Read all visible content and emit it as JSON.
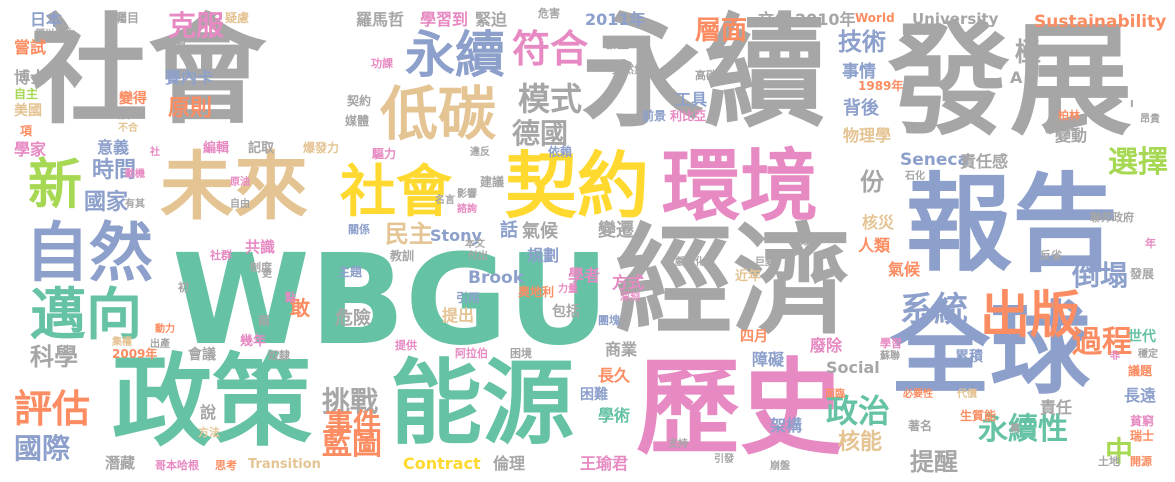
{
  "title": "",
  "palette": {
    "grey": "#a6a6a6",
    "green": "#66c2a5",
    "pink": "#e78ac3",
    "blue": "#8da0cb",
    "tan": "#e5c494",
    "yellow": "#ffd92f",
    "orange": "#fc8d62",
    "lime": "#a6d854"
  },
  "words": [
    {
      "text": "WBGU",
      "color": "green"
    },
    {
      "text": "社會",
      "color": "grey"
    },
    {
      "text": "永續",
      "color": "grey"
    },
    {
      "text": "發展",
      "color": "grey"
    },
    {
      "text": "經濟",
      "color": "grey"
    },
    {
      "text": "報告",
      "color": "blue"
    },
    {
      "text": "政策",
      "color": "green"
    },
    {
      "text": "能源",
      "color": "green"
    },
    {
      "text": "歷史",
      "color": "pink"
    },
    {
      "text": "全球",
      "color": "blue"
    },
    {
      "text": "未來",
      "color": "tan"
    },
    {
      "text": "環境",
      "color": "pink"
    },
    {
      "text": "社會",
      "color": "yellow"
    },
    {
      "text": "契約",
      "color": "yellow"
    },
    {
      "text": "自然",
      "color": "blue"
    },
    {
      "text": "邁向",
      "color": "green"
    },
    {
      "text": "永續",
      "color": "blue"
    },
    {
      "text": "低碳",
      "color": "tan"
    },
    {
      "text": "新",
      "color": "lime"
    },
    {
      "text": "出版",
      "color": "orange"
    },
    {
      "text": "符合",
      "color": "pink"
    },
    {
      "text": "評估",
      "color": "orange"
    },
    {
      "text": "國際",
      "color": "blue"
    },
    {
      "text": "藍圖",
      "color": "orange"
    },
    {
      "text": "政治",
      "color": "green"
    },
    {
      "text": "過程",
      "color": "orange"
    },
    {
      "text": "系統",
      "color": "blue"
    },
    {
      "text": "永續性",
      "color": "green"
    },
    {
      "text": "模式",
      "color": "grey"
    },
    {
      "text": "德國",
      "color": "grey"
    },
    {
      "text": "克服",
      "color": "pink"
    },
    {
      "text": "層面",
      "color": "orange"
    },
    {
      "text": "技術",
      "color": "blue"
    },
    {
      "text": "選擇",
      "color": "lime"
    },
    {
      "text": "倒塌",
      "color": "blue"
    },
    {
      "text": "挑戰",
      "color": "grey"
    },
    {
      "text": "事件",
      "color": "orange"
    },
    {
      "text": "時間",
      "color": "blue"
    },
    {
      "text": "國家",
      "color": "blue"
    },
    {
      "text": "原則",
      "color": "orange"
    },
    {
      "text": "民主",
      "color": "tan"
    },
    {
      "text": "科學",
      "color": "grey"
    },
    {
      "text": "提醒",
      "color": "grey"
    },
    {
      "text": "核能",
      "color": "tan"
    },
    {
      "text": "中",
      "color": "lime"
    },
    {
      "text": "份",
      "color": "grey"
    },
    {
      "text": "Stony",
      "color": "blue"
    },
    {
      "text": "Brook",
      "color": "blue"
    },
    {
      "text": "Seneca",
      "color": "blue"
    },
    {
      "text": "Contract",
      "color": "yellow"
    },
    {
      "text": "Social",
      "color": "grey"
    },
    {
      "text": "University",
      "color": "grey"
    },
    {
      "text": "Sustainability",
      "color": "orange"
    },
    {
      "text": "Transition",
      "color": "tan"
    },
    {
      "text": "World",
      "color": "orange"
    },
    {
      "text": "2011年",
      "color": "blue"
    },
    {
      "text": "文化",
      "color": "grey"
    },
    {
      "text": "2010年",
      "color": "grey"
    },
    {
      "text": "2009年",
      "color": "orange"
    },
    {
      "text": "1989年",
      "color": "orange"
    },
    {
      "text": "羅馬哲",
      "color": "grey"
    },
    {
      "text": "學習到",
      "color": "pink"
    },
    {
      "text": "緊迫",
      "color": "grey"
    },
    {
      "text": "日本",
      "color": "blue"
    },
    {
      "text": "矚目",
      "color": "grey"
    },
    {
      "text": "疑慮",
      "color": "tan"
    },
    {
      "text": "危害",
      "color": "grey"
    },
    {
      "text": "發生",
      "color": "grey"
    },
    {
      "text": "賽內卡",
      "color": "blue"
    },
    {
      "text": "福島",
      "color": "grey"
    },
    {
      "text": "嘗試",
      "color": "orange"
    },
    {
      "text": "頗以為生",
      "color": "grey"
    },
    {
      "text": "博士",
      "color": "grey"
    },
    {
      "text": "自主",
      "color": "lime"
    },
    {
      "text": "美國",
      "color": "tan"
    },
    {
      "text": "學家",
      "color": "pink"
    },
    {
      "text": "意義",
      "color": "blue"
    },
    {
      "text": "編輯",
      "color": "pink"
    },
    {
      "text": "記取",
      "color": "grey"
    },
    {
      "text": "爆發力",
      "color": "tan"
    },
    {
      "text": "驅力",
      "color": "pink"
    },
    {
      "text": "違反",
      "color": "grey"
    },
    {
      "text": "依賴",
      "color": "blue"
    },
    {
      "text": "前景",
      "color": "blue"
    },
    {
      "text": "利比亞",
      "color": "pink"
    },
    {
      "text": "事情",
      "color": "blue"
    },
    {
      "text": "工具",
      "color": "blue"
    },
    {
      "text": "背後",
      "color": "blue"
    },
    {
      "text": "物理學",
      "color": "tan"
    },
    {
      "text": "責任感",
      "color": "grey"
    },
    {
      "text": "變動",
      "color": "grey"
    },
    {
      "text": "柏林",
      "color": "orange"
    },
    {
      "text": "好像",
      "color": "grey"
    },
    {
      "text": "石化",
      "color": "grey"
    },
    {
      "text": "聯邦政府",
      "color": "grey"
    },
    {
      "text": "反省",
      "color": "grey"
    },
    {
      "text": "發展",
      "color": "grey"
    },
    {
      "text": "氣候",
      "color": "grey"
    },
    {
      "text": "變遷",
      "color": "grey"
    },
    {
      "text": "核災",
      "color": "tan"
    },
    {
      "text": "人類",
      "color": "orange"
    },
    {
      "text": "氣候",
      "color": "orange"
    },
    {
      "text": "規劃",
      "color": "blue"
    },
    {
      "text": "學者",
      "color": "pink"
    },
    {
      "text": "方式",
      "color": "pink"
    },
    {
      "text": "包括",
      "color": "grey"
    },
    {
      "text": "奧地利",
      "color": "orange"
    },
    {
      "text": "引用",
      "color": "blue"
    },
    {
      "text": "提出",
      "color": "tan"
    },
    {
      "text": "危險",
      "color": "grey"
    },
    {
      "text": "敢",
      "color": "orange"
    },
    {
      "text": "共識",
      "color": "pink"
    },
    {
      "text": "制度",
      "color": "grey"
    },
    {
      "text": "主題",
      "color": "blue"
    },
    {
      "text": "教訓",
      "color": "grey"
    },
    {
      "text": "關係",
      "color": "blue"
    },
    {
      "text": "社群",
      "color": "pink"
    },
    {
      "text": "初",
      "color": "grey"
    },
    {
      "text": "動力",
      "color": "orange"
    },
    {
      "text": "幾年",
      "color": "pink"
    },
    {
      "text": "集權",
      "color": "tan"
    },
    {
      "text": "出產",
      "color": "grey"
    },
    {
      "text": "會議",
      "color": "grey"
    },
    {
      "text": "奴隸",
      "color": "grey"
    },
    {
      "text": "提供",
      "color": "pink"
    },
    {
      "text": "阿拉伯",
      "color": "pink"
    },
    {
      "text": "困境",
      "color": "grey"
    },
    {
      "text": "商業",
      "color": "grey"
    },
    {
      "text": "四月",
      "color": "orange"
    },
    {
      "text": "廢除",
      "color": "pink"
    },
    {
      "text": "障礙",
      "color": "blue"
    },
    {
      "text": "累積",
      "color": "blue"
    },
    {
      "text": "世代",
      "color": "green"
    },
    {
      "text": "長遠",
      "color": "blue"
    },
    {
      "text": "議題",
      "color": "orange"
    },
    {
      "text": "貧窮",
      "color": "pink"
    },
    {
      "text": "瑞士",
      "color": "orange"
    },
    {
      "text": "開源",
      "color": "orange"
    },
    {
      "text": "土地",
      "color": "grey"
    },
    {
      "text": "責任",
      "color": "grey"
    },
    {
      "text": "生質能",
      "color": "orange"
    },
    {
      "text": "著名",
      "color": "grey"
    },
    {
      "text": "架構",
      "color": "blue"
    },
    {
      "text": "學術",
      "color": "green"
    },
    {
      "text": "困難",
      "color": "blue"
    },
    {
      "text": "長久",
      "color": "orange"
    },
    {
      "text": "倫理",
      "color": "grey"
    },
    {
      "text": "王瑜君",
      "color": "pink"
    },
    {
      "text": "潛藏",
      "color": "grey"
    },
    {
      "text": "哥本哈根",
      "color": "pink"
    },
    {
      "text": "思考",
      "color": "orange"
    },
    {
      "text": "說",
      "color": "grey"
    },
    {
      "text": "方法",
      "color": "tan"
    },
    {
      "text": "變得",
      "color": "orange"
    },
    {
      "text": "股",
      "color": "grey"
    },
    {
      "text": "項",
      "color": "orange"
    },
    {
      "text": "不合",
      "color": "tan"
    },
    {
      "text": "契約",
      "color": "grey"
    },
    {
      "text": "媒體",
      "color": "grey"
    },
    {
      "text": "功課",
      "color": "pink"
    },
    {
      "text": "天然氣",
      "color": "grey"
    },
    {
      "text": "高碳",
      "color": "grey"
    },
    {
      "text": "昂貴",
      "color": "grey"
    },
    {
      "text": "名言",
      "color": "grey"
    },
    {
      "text": "影響",
      "color": "grey"
    },
    {
      "text": "諮詢",
      "color": "pink"
    },
    {
      "text": "建議",
      "color": "grey"
    },
    {
      "text": "話",
      "color": "blue"
    },
    {
      "text": "本文",
      "color": "grey"
    },
    {
      "text": "付出",
      "color": "grey"
    },
    {
      "text": "戲劇化",
      "color": "grey"
    },
    {
      "text": "巨變",
      "color": "grey"
    },
    {
      "text": "政體",
      "color": "grey"
    },
    {
      "text": "近年",
      "color": "tan"
    },
    {
      "text": "深刻",
      "color": "pink"
    },
    {
      "text": "團塊",
      "color": "blue"
    },
    {
      "text": "力量",
      "color": "pink"
    },
    {
      "text": "點",
      "color": "pink"
    },
    {
      "text": "更",
      "color": "grey"
    },
    {
      "text": "兩",
      "color": "grey"
    },
    {
      "text": "動機",
      "color": "pink"
    },
    {
      "text": "原油",
      "color": "pink"
    },
    {
      "text": "自由",
      "color": "grey"
    },
    {
      "text": "有其",
      "color": "grey"
    },
    {
      "text": "社",
      "color": "pink"
    },
    {
      "text": "學習",
      "color": "pink"
    },
    {
      "text": "蘇聯",
      "color": "grey"
    },
    {
      "text": "面臨",
      "color": "orange"
    },
    {
      "text": "必要性",
      "color": "orange"
    },
    {
      "text": "代價",
      "color": "tan"
    },
    {
      "text": "支持",
      "color": "grey"
    },
    {
      "text": "崩盤",
      "color": "grey"
    },
    {
      "text": "引發",
      "color": "grey"
    },
    {
      "text": "穩定",
      "color": "grey"
    },
    {
      "text": "幕",
      "color": "grey"
    },
    {
      "text": "非",
      "color": "pink"
    },
    {
      "text": "年",
      "color": "pink"
    },
    {
      "text": "極",
      "color": "grey"
    },
    {
      "text": "A",
      "color": "grey"
    },
    {
      "text": "I",
      "color": "grey"
    }
  ]
}
